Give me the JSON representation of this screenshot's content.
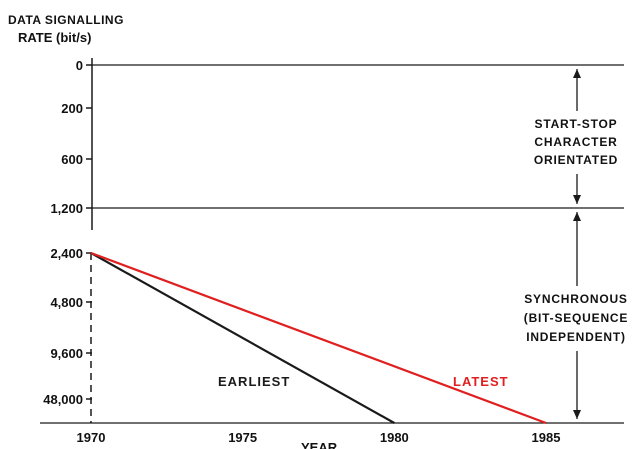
{
  "chart_data": {
    "type": "line",
    "ylabel_line1": "DATA SIGNALLING",
    "ylabel_line2": "RATE (bit/s)",
    "xlabel": "YEAR",
    "y_categories": [
      "0",
      "200",
      "600",
      "1,200",
      "2,400",
      "4,800",
      "9,600",
      "48,000"
    ],
    "x_ticks": [
      1970,
      1975,
      1980,
      1985
    ],
    "xlim": [
      1970,
      1985
    ],
    "series": [
      {
        "name": "EARLIEST",
        "color": "#1a1a1a",
        "x": [
          1970,
          1980
        ],
        "y": [
          "2,400",
          "48,000"
        ]
      },
      {
        "name": "LATEST",
        "color": "#e02020",
        "x": [
          1970,
          1985
        ],
        "y": [
          "2,400",
          "48,000"
        ]
      }
    ],
    "boundaries": [
      "0",
      "1,200",
      "48,000"
    ],
    "regions": [
      {
        "from": "0",
        "to": "1,200",
        "label_lines": [
          "START-STOP",
          "CHARACTER",
          "ORIENTATED"
        ]
      },
      {
        "from": "1,200",
        "to": "48,000",
        "label_lines": [
          "SYNCHRONOUS",
          "(BIT-SEQUENCE",
          "INDEPENDENT)"
        ]
      }
    ],
    "vertical_marker": {
      "x": 1970,
      "from": "2,400",
      "to": "48,000",
      "style": "dashed"
    },
    "grid": false
  }
}
